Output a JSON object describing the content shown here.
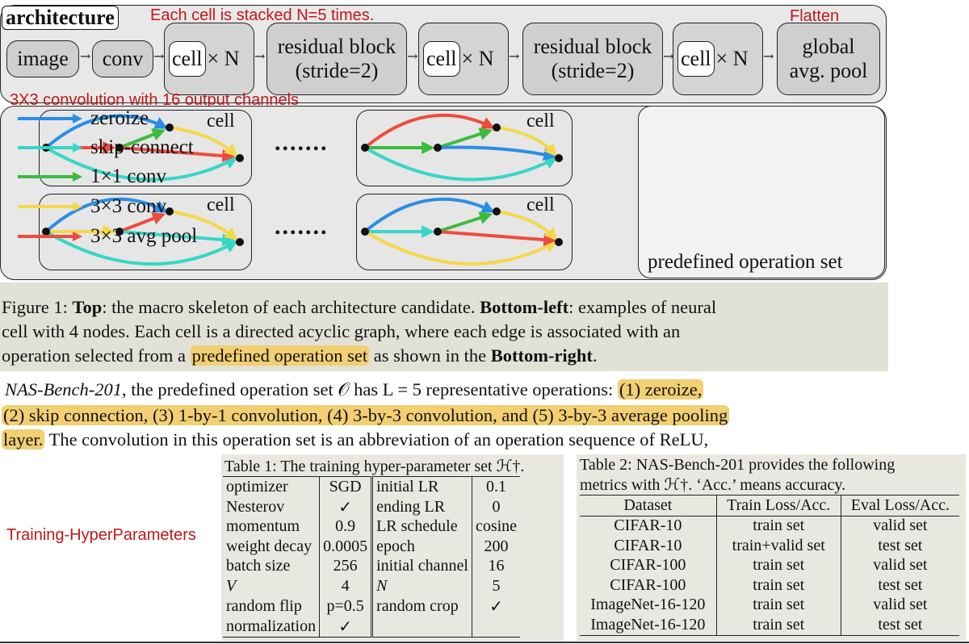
{
  "figure": {
    "arch_label": "architecture",
    "note_stacked": "Each cell is stacked N=5 times.",
    "note_flatten": "Flatten",
    "note_conv": "3X3 convolution with 16 output channels",
    "blocks": {
      "image": "image",
      "conv": "conv",
      "cell": "cell",
      "times_n": "× N",
      "residual_1": "residual block",
      "residual_2": "(stride=2)",
      "pool_1": "global",
      "pool_2": "avg. pool"
    },
    "cell_label": "cell",
    "dots": ".......",
    "legend": {
      "items": [
        {
          "label": "zeroize",
          "color": "#2a8de6"
        },
        {
          "label": "skip-connect",
          "color": "#37d6c6"
        },
        {
          "label": "1×1 conv",
          "color": "#3dbb3d"
        },
        {
          "label": "3×3 conv",
          "color": "#f5d84a"
        },
        {
          "label": "3×3 avg pool",
          "color": "#ef4b3f"
        }
      ],
      "title": "predefined operation set"
    }
  },
  "caption": {
    "line1_a": "Figure 1:  ",
    "line1_b": "Top",
    "line1_c": ": the macro skeleton of each architecture candidate. ",
    "line1_d": "Bottom-left",
    "line1_e": ": examples of neural",
    "line2": "cell with 4 nodes.  Each cell is a directed acyclic graph, where each edge is associated with an",
    "line3_a": "operation selected from a ",
    "line3_b": "predefined operation set",
    "line3_c": " as shown in the ",
    "line3_d": "Bottom-right",
    "line3_e": "."
  },
  "paragraph": {
    "l1_a": "NAS-Bench-201",
    "l1_b": ", the predefined operation set 𝒪 has L = 5 representative operations: ",
    "l1_c": "(1) zeroize,",
    "l2": "(2) skip connection, (3) 1-by-1 convolution, (4) 3-by-3 convolution, and (5) 3-by-3 average pooling",
    "l3_a": "layer.",
    "l3_b": " The convolution in this operation set is an abbreviation of an operation sequence of ReLU,"
  },
  "side_note": "Training-HyperParameters",
  "table1": {
    "caption": "Table 1:  The training hyper-parameter set ℋ†.",
    "rows": [
      [
        "optimizer",
        "SGD",
        "initial LR",
        "0.1"
      ],
      [
        "Nesterov",
        "✓",
        "ending LR",
        "0"
      ],
      [
        "momentum",
        "0.9",
        "LR schedule",
        "cosine"
      ],
      [
        "weight decay",
        "0.0005",
        "epoch",
        "200"
      ],
      [
        "batch size",
        "256",
        "initial channel",
        "16"
      ],
      [
        "V",
        "4",
        "N",
        "5"
      ],
      [
        "random flip",
        "p=0.5",
        "random crop",
        "✓"
      ],
      [
        "normalization",
        "✓",
        "",
        ""
      ]
    ]
  },
  "table2": {
    "caption_1": "Table 2:  NAS-Bench-201 provides the following",
    "caption_2": "metrics with ℋ†. ‘Acc.’ means accuracy.",
    "headers": [
      "Dataset",
      "Train Loss/Acc.",
      "Eval Loss/Acc."
    ],
    "rows": [
      [
        "CIFAR-10",
        "train set",
        "valid set"
      ],
      [
        "CIFAR-10",
        "train+valid set",
        "test set"
      ],
      [
        "CIFAR-100",
        "train set",
        "valid set"
      ],
      [
        "CIFAR-100",
        "train set",
        "test set"
      ],
      [
        "ImageNet-16-120",
        "train set",
        "valid set"
      ],
      [
        "ImageNet-16-120",
        "train set",
        "test set"
      ]
    ]
  }
}
